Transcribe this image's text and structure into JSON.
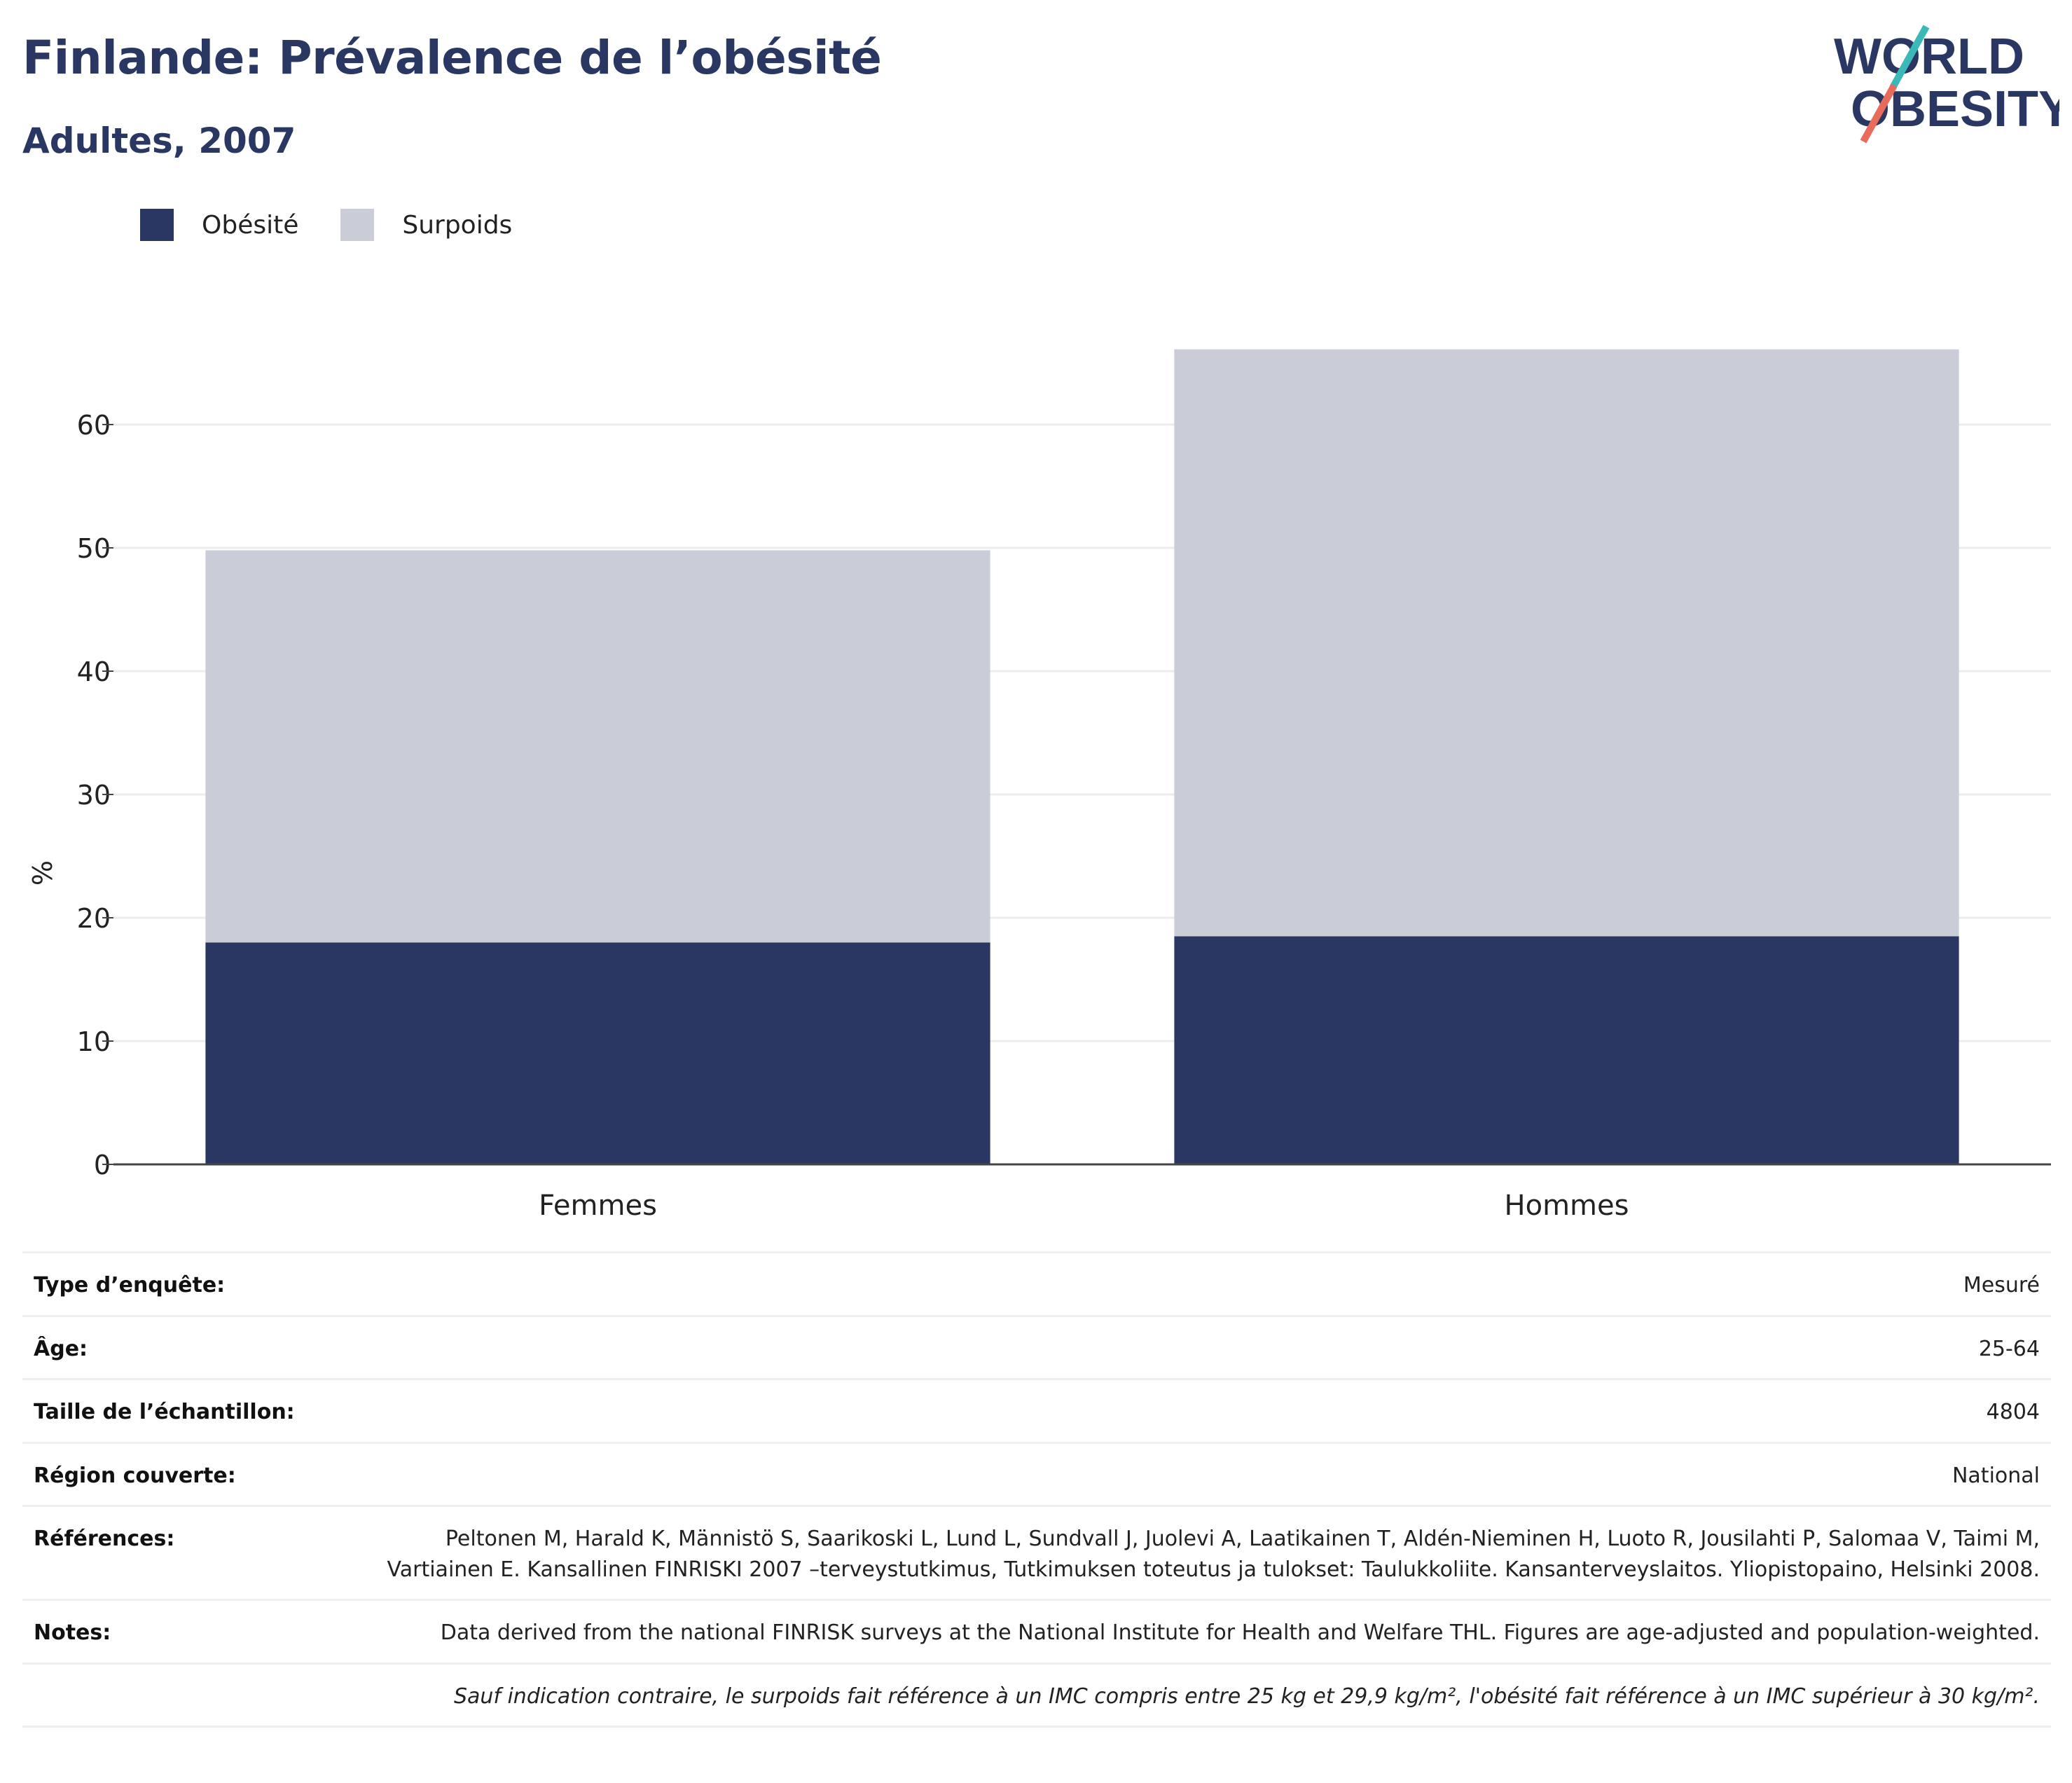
{
  "header": {
    "title": "Finlande: Prévalence de l’obésité",
    "subtitle": "Adultes, 2007"
  },
  "logo": {
    "line1": "WORLD",
    "line2": "OBESITY"
  },
  "colors": {
    "obesity": "#2b3763",
    "overweight": "#cacdd8",
    "title": "#2b3763"
  },
  "chart_data": {
    "type": "bar",
    "stacked": true,
    "categories": [
      "Femmes",
      "Hommes"
    ],
    "series": [
      {
        "name": "Obésité",
        "values": [
          18.0,
          18.5
        ],
        "color": "#2b3763"
      },
      {
        "name": "Surpoids",
        "values": [
          31.8,
          47.6
        ],
        "color": "#cacdd8"
      }
    ],
    "ylabel": "%",
    "xlabel": "",
    "ylim": [
      0,
      70
    ],
    "yticks": [
      0,
      10,
      20,
      30,
      40,
      50,
      60
    ],
    "grid": true,
    "legend_position": "top-left"
  },
  "meta": {
    "rows": [
      {
        "label": "Type d’enquête:",
        "value": "Mesuré"
      },
      {
        "label": "Âge:",
        "value": "25-64"
      },
      {
        "label": "Taille de l’échantillon:",
        "value": "4804"
      },
      {
        "label": "Région couverte:",
        "value": "National"
      },
      {
        "label": "Références:",
        "value": "Peltonen M, Harald K, Männistö S, Saarikoski L, Lund L, Sundvall J, Juolevi A, Laatikainen T, Aldén-Nieminen H, Luoto R, Jousilahti P, Salomaa V, Taimi M, Vartiainen E. Kansallinen FINRISKI 2007 –terveystutkimus, Tutkimuksen toteutus ja tulokset: Taulukkoliite. Kansanterveyslaitos. Yliopistopaino, Helsinki 2008."
      },
      {
        "label": "Notes:",
        "value": "Data derived from the national FINRISK surveys at the National Institute for Health and Welfare THL. Figures are age-adjusted and population-weighted."
      }
    ],
    "footnote": "Sauf indication contraire, le surpoids fait référence à un IMC compris entre 25 kg et 29,9 kg/m², l'obésité fait référence à un IMC supérieur à 30 kg/m²."
  }
}
